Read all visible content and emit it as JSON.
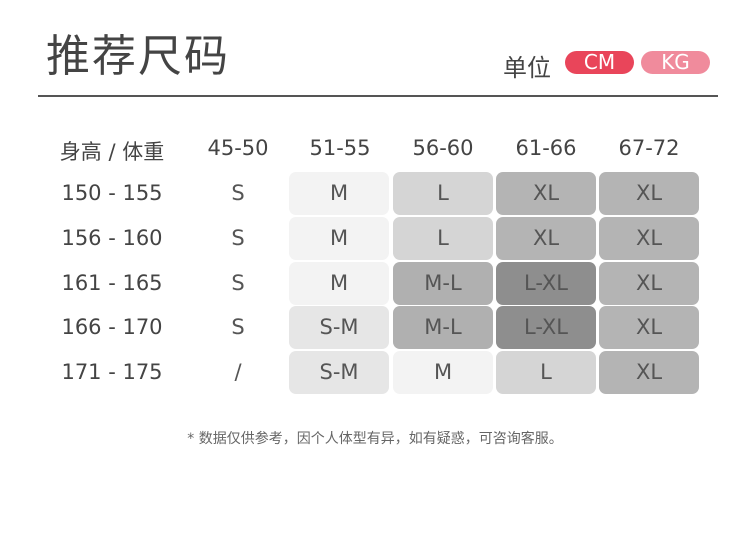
{
  "title": "推荐尺码",
  "unit": {
    "label": "单位",
    "cm": "CM",
    "kg": "KG",
    "cm_color": "#e9455a",
    "kg_color": "#f08b9c"
  },
  "table": {
    "corner": "身高 / 体重",
    "columns": [
      "45-50",
      "51-55",
      "56-60",
      "61-66",
      "67-72"
    ],
    "rows": [
      {
        "height": "150 - 155",
        "sizes": [
          "S",
          "M",
          "L",
          "XL",
          "XL"
        ]
      },
      {
        "height": "156 - 160",
        "sizes": [
          "S",
          "M",
          "L",
          "XL",
          "XL"
        ]
      },
      {
        "height": "161 - 165",
        "sizes": [
          "S",
          "M",
          "M-L",
          "L-XL",
          "XL"
        ]
      },
      {
        "height": "166 - 170",
        "sizes": [
          "S",
          "S-M",
          "M-L",
          "L-XL",
          "XL"
        ]
      },
      {
        "height": "171 - 175",
        "sizes": [
          "/",
          "S-M",
          "M",
          "L",
          "XL"
        ]
      }
    ]
  },
  "note": "* 数据仅供参考，因个人体型有异，如有疑惑，可咨询客服。"
}
